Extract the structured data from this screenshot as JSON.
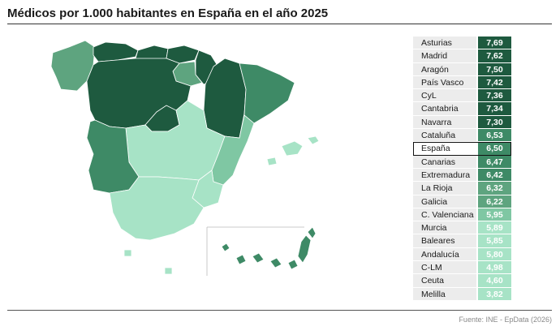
{
  "title": "Médicos por 1.000 habitantes en España en el año 2025",
  "source": "Fuente: INE - EpData (2026)",
  "colors": {
    "darkest": "#1e5a3f",
    "dark": "#2e7452",
    "mid": "#3e8a66",
    "midlight": "#5ea47f",
    "light": "#7fc7a3",
    "lightest": "#a7e3c6",
    "highlight_border": "#111111"
  },
  "chart_data": {
    "type": "table",
    "title": "Médicos por 1.000 habitantes en España en el año 2025",
    "categories": [
      "Asturias",
      "Madrid",
      "Aragón",
      "País Vasco",
      "CyL",
      "Cantabria",
      "Navarra",
      "Cataluña",
      "España",
      "Canarias",
      "Extremadura",
      "La Rioja",
      "Galicia",
      "C. Valenciana",
      "Murcia",
      "Baleares",
      "Andalucía",
      "C-LM",
      "Ceuta",
      "Melilla"
    ],
    "series": [
      {
        "values": [
          7.69,
          7.62,
          7.5,
          7.42,
          7.36,
          7.34,
          7.3,
          6.53,
          6.5,
          6.47,
          6.42,
          6.32,
          6.22,
          5.95,
          5.89,
          5.85,
          5.8,
          4.98,
          4.6,
          3.82
        ]
      }
    ],
    "labels": [
      "7,69",
      "7,62",
      "7,50",
      "7,42",
      "7,36",
      "7,34",
      "7,30",
      "6,53",
      "6,50",
      "6,47",
      "6,42",
      "6,32",
      "6,22",
      "5,95",
      "5,89",
      "5,85",
      "5,80",
      "4,98",
      "4,60",
      "3,82"
    ],
    "highlight": "España"
  },
  "map": {
    "type": "choropleth",
    "regions": [
      {
        "name": "Galicia",
        "value": 6.22
      },
      {
        "name": "Asturias",
        "value": 7.69
      },
      {
        "name": "Cantabria",
        "value": 7.34
      },
      {
        "name": "País Vasco",
        "value": 7.42
      },
      {
        "name": "Navarra",
        "value": 7.3
      },
      {
        "name": "La Rioja",
        "value": 6.32
      },
      {
        "name": "Aragón",
        "value": 7.5
      },
      {
        "name": "Cataluña",
        "value": 6.53
      },
      {
        "name": "CyL",
        "value": 7.36
      },
      {
        "name": "Madrid",
        "value": 7.62
      },
      {
        "name": "C-LM",
        "value": 4.98
      },
      {
        "name": "C. Valenciana",
        "value": 5.95
      },
      {
        "name": "Extremadura",
        "value": 6.42
      },
      {
        "name": "Andalucía",
        "value": 5.8
      },
      {
        "name": "Murcia",
        "value": 5.89
      },
      {
        "name": "Baleares",
        "value": 5.85
      },
      {
        "name": "Canarias",
        "value": 6.47
      },
      {
        "name": "Ceuta",
        "value": 4.6
      },
      {
        "name": "Melilla",
        "value": 3.82
      }
    ]
  }
}
